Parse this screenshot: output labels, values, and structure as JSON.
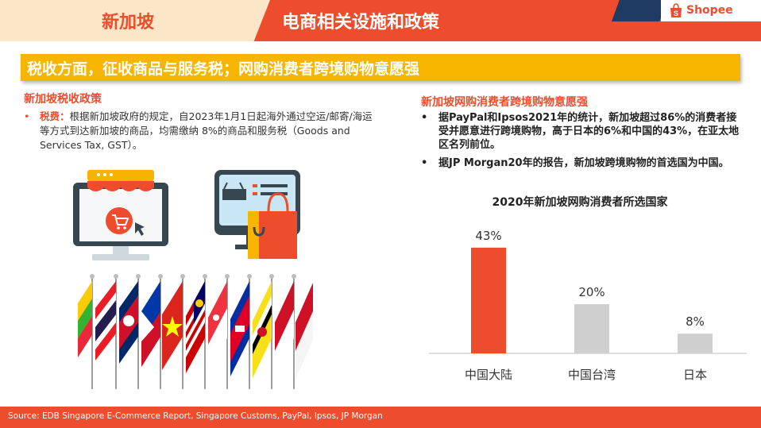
{
  "header": {
    "left_title": "新加坡",
    "right_title": "电商相关设施和政策"
  },
  "banner": {
    "text": "税收方面，征收商品与服务税；网购消费者跨境购物意愿强"
  },
  "left": {
    "title": "新加坡税收政策",
    "bullet_tag": "税费：",
    "bullet_text": "根据新加坡政府的规定，自2023年1月1日起海外通过空运/邮寄/海运等方式到达新加坡的商品，均需缴纳 8%的商品和服务税（Goods and Services Tax, GST）。"
  },
  "right": {
    "title": "新加坡网购消费者跨境购物意愿强",
    "bullets": [
      "据PayPal和Ipsos2021年的统计，新加坡超过86%的消费者接受并愿意进行跨境购物，高于日本的6%和中国的43%，在亚太地区名列前位。",
      "据JP Morgan20年的报告，新加坡跨境购物的首选国为中国。"
    ]
  },
  "chart_data": {
    "type": "bar",
    "title": "2020年新加坡网购消费者所选国家",
    "categories": [
      "中国大陆",
      "中国台湾",
      "日本"
    ],
    "values": [
      43,
      20,
      8
    ],
    "value_labels": [
      "43%",
      "20%",
      "8%"
    ],
    "colors": [
      "#ee4d2d",
      "#cfcfcf",
      "#cfcfcf"
    ],
    "ylim": [
      0,
      50
    ],
    "grid": false
  },
  "footer": {
    "source": "Source: EDB Singapore E-Commerce Report, Singapore Customs, PayPal, Ipsos, JP Morgan",
    "logo_text": "Shopee"
  },
  "icons": {
    "dot": "•"
  },
  "colors": {
    "brand": "#ee4d2d",
    "banner": "#f7b500",
    "header_left_bg": "#fbe6c8",
    "navy": "#1f3b63"
  }
}
